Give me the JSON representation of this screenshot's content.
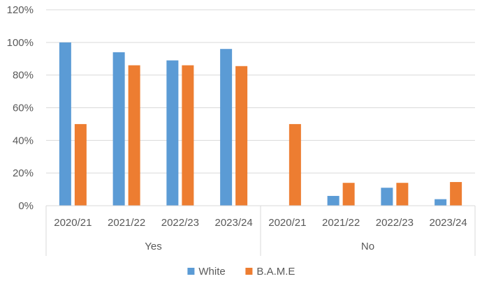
{
  "chart_data": {
    "type": "bar",
    "groups": [
      {
        "label": "Yes",
        "categories": [
          "2020/21",
          "2021/22",
          "2022/23",
          "2023/24"
        ]
      },
      {
        "label": "No",
        "categories": [
          "2020/21",
          "2021/22",
          "2022/23",
          "2023/24"
        ]
      }
    ],
    "series": [
      {
        "name": "White",
        "color": "#5B9BD5",
        "values": [
          100,
          94,
          89,
          96,
          0,
          6,
          11,
          4
        ]
      },
      {
        "name": "B.A.M.E",
        "color": "#ED7D31",
        "values": [
          50,
          86,
          86,
          85.5,
          50,
          14,
          14,
          14.5
        ]
      }
    ],
    "y_ticks": [
      "0%",
      "20%",
      "40%",
      "60%",
      "80%",
      "100%",
      "120%"
    ],
    "ylim": [
      0,
      120
    ],
    "grid": true,
    "legend_position": "bottom"
  }
}
